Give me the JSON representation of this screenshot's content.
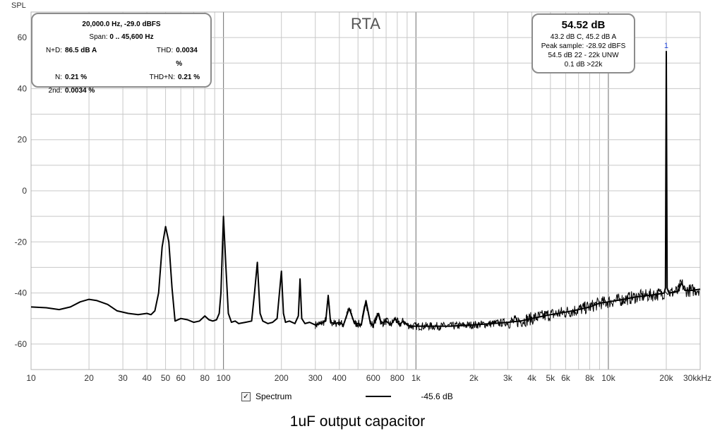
{
  "chart_data": {
    "type": "line",
    "title": "RTA",
    "caption": "1uF output capacitor",
    "ylabel": "SPL",
    "x_unit": "kHz",
    "x_scale": "log",
    "xlim": [
      10,
      30000
    ],
    "ylim": [
      -70,
      70
    ],
    "x_ticks": [
      {
        "value": 10,
        "label": "10"
      },
      {
        "value": 20,
        "label": "20"
      },
      {
        "value": 30,
        "label": "30"
      },
      {
        "value": 40,
        "label": "40"
      },
      {
        "value": 50,
        "label": "50"
      },
      {
        "value": 60,
        "label": "60"
      },
      {
        "value": 80,
        "label": "80"
      },
      {
        "value": 100,
        "label": "100"
      },
      {
        "value": 200,
        "label": "200"
      },
      {
        "value": 300,
        "label": "300"
      },
      {
        "value": 400,
        "label": "400"
      },
      {
        "value": 600,
        "label": "600"
      },
      {
        "value": 800,
        "label": "800"
      },
      {
        "value": 1000,
        "label": "1k"
      },
      {
        "value": 2000,
        "label": "2k"
      },
      {
        "value": 3000,
        "label": "3k"
      },
      {
        "value": 4000,
        "label": "4k"
      },
      {
        "value": 5000,
        "label": "5k"
      },
      {
        "value": 6000,
        "label": "6k"
      },
      {
        "value": 8000,
        "label": "8k"
      },
      {
        "value": 10000,
        "label": "10k"
      },
      {
        "value": 20000,
        "label": "20k"
      },
      {
        "value": 30000,
        "label": "30k"
      }
    ],
    "y_ticks": [
      60,
      40,
      20,
      0,
      -20,
      -40,
      -60
    ],
    "grid": true,
    "series": [
      {
        "name": "Spectrum",
        "legend_value": "-45.6 dB",
        "color": "#000000",
        "x": [
          10,
          12,
          14,
          16,
          18,
          20,
          22,
          25,
          28,
          32,
          36,
          40,
          42,
          44,
          46,
          48,
          50,
          52,
          54,
          56,
          60,
          65,
          70,
          75,
          80,
          84,
          88,
          92,
          95,
          97,
          100,
          103,
          106,
          110,
          115,
          120,
          130,
          140,
          145,
          150,
          155,
          160,
          170,
          180,
          190,
          200,
          205,
          210,
          220,
          235,
          245,
          250,
          255,
          265,
          280,
          300,
          320,
          340,
          350,
          360,
          380,
          400,
          420,
          450,
          480,
          500,
          520,
          550,
          580,
          600,
          640,
          660,
          700,
          740,
          780,
          820,
          860,
          900,
          950,
          1000,
          1200,
          1500,
          2000,
          2500,
          3000,
          3500,
          4000,
          5000,
          6000,
          7000,
          8000,
          9000,
          10000,
          12000,
          14000,
          16000,
          18000,
          19500,
          19800,
          20000,
          20200,
          20500,
          21000,
          22000,
          23000,
          24000,
          25000,
          27000,
          30000
        ],
        "y": [
          -45.5,
          -45.8,
          -46.5,
          -45.5,
          -43.5,
          -42.5,
          -43,
          -44.5,
          -47,
          -48,
          -48.5,
          -48,
          -48.5,
          -47,
          -40,
          -22,
          -14,
          -20,
          -38,
          -51,
          -50,
          -50.5,
          -51.5,
          -51,
          -49,
          -50.5,
          -51,
          -50.5,
          -48,
          -40,
          -10,
          -30,
          -48,
          -51.5,
          -51,
          -52,
          -51.5,
          -51,
          -40,
          -28,
          -48,
          -51,
          -52,
          -51.5,
          -50,
          -31.5,
          -48,
          -51.5,
          -51,
          -52,
          -49,
          -34.5,
          -50,
          -52,
          -51.5,
          -52.5,
          -52,
          -51,
          -41,
          -51.5,
          -52,
          -51.5,
          -52.5,
          -46,
          -52,
          -52,
          -52.5,
          -43,
          -52,
          -52.5,
          -48,
          -52,
          -51,
          -52.5,
          -50,
          -52.5,
          -51,
          -52.5,
          -53,
          -53,
          -53,
          -53,
          -52.5,
          -52,
          -51.5,
          -51,
          -50,
          -48.5,
          -47.5,
          -46.5,
          -45.5,
          -44,
          -43.5,
          -42.5,
          -41.5,
          -41,
          -40.5,
          -40,
          -38,
          54.52,
          -38,
          -39.5,
          -40,
          -39.5,
          -39.5,
          -36,
          -39,
          -39,
          -38.5
        ]
      }
    ],
    "marker": {
      "x": 20000,
      "label": "1",
      "color": "#1a3fd4"
    }
  },
  "info_box": {
    "cursor": "20,000.0 Hz, -29.0 dBFS",
    "span_label": "Span:",
    "span_value": "0 .. 45,600 Hz",
    "nd_label": "N+D:",
    "nd_value": "86.5 dB A",
    "thd_label": "THD:",
    "thd_value": "0.0034 %",
    "n_label": "N:",
    "n_value": "0.21 %",
    "thdn_label": "THD+N:",
    "thdn_value": "0.21 %",
    "second_label": "2nd:",
    "second_value": "0.0034 %"
  },
  "level_box": {
    "level": "54.52 dB",
    "weighted": "43.2 dB C, 45.2 dB A",
    "peak": "Peak sample: -28.92 dBFS",
    "unweighted": "54.5 dB 22 - 22k UNW",
    "above": "0.1 dB >22k"
  },
  "legend": {
    "checkbox_mark": "✓",
    "label": "Spectrum",
    "value": "-45.6 dB"
  },
  "colors": {
    "grid": "#c8c8c8",
    "grid_major": "#6e6e6e",
    "plot_border": "#b4b4b4",
    "trace": "#000000"
  }
}
